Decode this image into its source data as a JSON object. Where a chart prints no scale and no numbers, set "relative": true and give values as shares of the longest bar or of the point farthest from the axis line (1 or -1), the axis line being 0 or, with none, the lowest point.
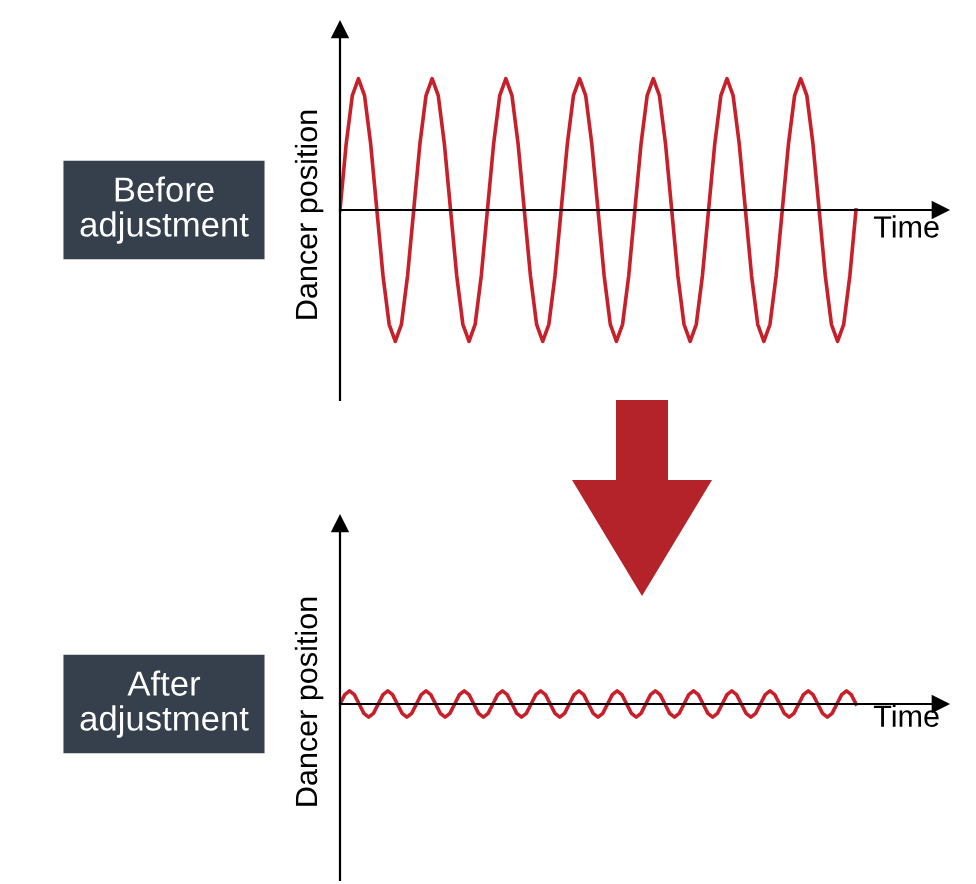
{
  "chart_data": [
    {
      "type": "line",
      "relative": true,
      "xlabel": "Time",
      "ylabel": "Dancer position",
      "annotations": [
        "Before\nadjustment"
      ],
      "categories": [
        null,
        null,
        null,
        null,
        null,
        null,
        null,
        null,
        null,
        null,
        null,
        null,
        null,
        null,
        null,
        null,
        null,
        null,
        null,
        null,
        null,
        null,
        null,
        null,
        null,
        null,
        null,
        null,
        null,
        null,
        null,
        null,
        null,
        null,
        null,
        null,
        null,
        null,
        null,
        null,
        null,
        null,
        null,
        null,
        null,
        null,
        null,
        null,
        null,
        null,
        null,
        null,
        null,
        null,
        null,
        null,
        null,
        null,
        null,
        null,
        null,
        null,
        null,
        null,
        null,
        null,
        null,
        null,
        null,
        null,
        null,
        null,
        null,
        null,
        null,
        null,
        null,
        null,
        null,
        null,
        null,
        null,
        null,
        null,
        null
      ],
      "series": [
        {
          "color": "#c8202a",
          "values": [
            0,
            0.5,
            0.87,
            1,
            0.87,
            0.5,
            0,
            -0.5,
            -0.87,
            -1,
            -0.87,
            -0.5,
            0,
            0.5,
            0.87,
            1,
            0.87,
            0.5,
            0,
            -0.5,
            -0.87,
            -1,
            -0.87,
            -0.5,
            0,
            0.5,
            0.87,
            1,
            0.87,
            0.5,
            0,
            -0.5,
            -0.87,
            -1,
            -0.87,
            -0.5,
            0,
            0.5,
            0.87,
            1,
            0.87,
            0.5,
            0,
            -0.5,
            -0.87,
            -1,
            -0.87,
            -0.5,
            0,
            0.5,
            0.87,
            1,
            0.87,
            0.5,
            0,
            -0.5,
            -0.87,
            -1,
            -0.87,
            -0.5,
            0,
            0.5,
            0.87,
            1,
            0.87,
            0.5,
            0,
            -0.5,
            -0.87,
            -1,
            -0.87,
            -0.5,
            0,
            0.5,
            0.87,
            1,
            0.87,
            0.5,
            0,
            -0.5,
            -0.87,
            -1,
            -0.87,
            -0.5,
            0
          ]
        }
      ]
    },
    {
      "type": "line",
      "relative": true,
      "xlabel": "Time",
      "ylabel": "Dancer position",
      "annotations": [
        "After\nadjustment"
      ],
      "categories": [
        null,
        null,
        null,
        null,
        null,
        null,
        null,
        null,
        null,
        null,
        null,
        null,
        null,
        null,
        null,
        null,
        null,
        null,
        null,
        null,
        null,
        null,
        null,
        null,
        null,
        null,
        null,
        null,
        null,
        null,
        null,
        null,
        null,
        null,
        null,
        null,
        null,
        null,
        null,
        null,
        null,
        null,
        null,
        null,
        null,
        null,
        null,
        null,
        null,
        null,
        null,
        null,
        null,
        null,
        null,
        null,
        null,
        null,
        null,
        null,
        null,
        null,
        null,
        null,
        null,
        null,
        null,
        null,
        null,
        null,
        null,
        null,
        null,
        null,
        null,
        null,
        null,
        null,
        null,
        null,
        null,
        null,
        null,
        null,
        null,
        null,
        null,
        null,
        null,
        null,
        null,
        null,
        null,
        null,
        null,
        null,
        null,
        null,
        null,
        null,
        null,
        null,
        null,
        null,
        null,
        null,
        null,
        null,
        null
      ],
      "series": [
        {
          "color": "#c8202a",
          "values": [
            0,
            0.71,
            1,
            0.71,
            0,
            -0.71,
            -1,
            -0.71,
            0,
            0.71,
            1,
            0.71,
            0,
            -0.71,
            -1,
            -0.71,
            0,
            0.71,
            1,
            0.71,
            0,
            -0.71,
            -1,
            -0.71,
            0,
            0.71,
            1,
            0.71,
            0,
            -0.71,
            -1,
            -0.71,
            0,
            0.71,
            1,
            0.71,
            0,
            -0.71,
            -1,
            -0.71,
            0,
            0.71,
            1,
            0.71,
            0,
            -0.71,
            -1,
            -0.71,
            0,
            0.71,
            1,
            0.71,
            0,
            -0.71,
            -1,
            -0.71,
            0,
            0.71,
            1,
            0.71,
            0,
            -0.71,
            -1,
            -0.71,
            0,
            0.71,
            1,
            0.71,
            0,
            -0.71,
            -1,
            -0.71,
            0,
            0.71,
            1,
            0.71,
            0,
            -0.71,
            -1,
            -0.71,
            0,
            0.71,
            1,
            0.71,
            0,
            -0.71,
            -1,
            -0.71,
            0,
            0.71,
            1,
            0.71,
            0,
            -0.71,
            -1,
            -0.71,
            0,
            0.71,
            1,
            0.71,
            0,
            -0.71,
            -1,
            -0.71,
            0,
            0.71,
            1,
            0.71,
            0
          ]
        }
      ]
    }
  ]
}
